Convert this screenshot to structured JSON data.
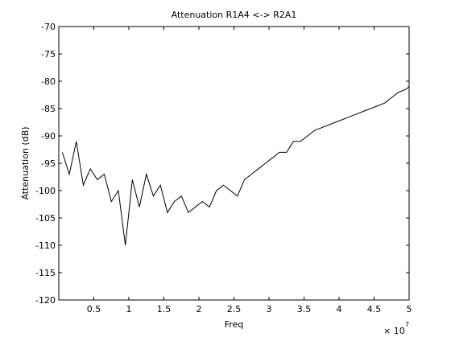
{
  "figure": {
    "title": "Attenuation R1A4 <-> R2A1",
    "xlabel": "Freq",
    "ylabel": "Attenuation (dB)",
    "x_exponent_base": "× 10",
    "x_exponent_power": "7"
  },
  "chart_data": {
    "type": "line",
    "title": "Attenuation R1A4 <-> R2A1",
    "xlabel": "Freq",
    "ylabel": "Attenuation (dB)",
    "x_scale_note": "x 10^7",
    "xlim": [
      0,
      5
    ],
    "ylim": [
      -120,
      -70
    ],
    "x_ticks": [
      0.5,
      1,
      1.5,
      2,
      2.5,
      3,
      3.5,
      4,
      4.5,
      5
    ],
    "x_tick_labels": [
      "0.5",
      "1",
      "1.5",
      "2",
      "2.5",
      "3",
      "3.5",
      "4",
      "4.5",
      "5"
    ],
    "y_ticks": [
      -120,
      -115,
      -110,
      -105,
      -100,
      -95,
      -90,
      -85,
      -80,
      -75,
      -70
    ],
    "y_tick_labels": [
      "-120",
      "-115",
      "-110",
      "-105",
      "-100",
      "-95",
      "-90",
      "-85",
      "-80",
      "-75",
      "-70"
    ],
    "grid": false,
    "series_color": "#000000",
    "series": [
      {
        "x": [
          0.05,
          0.15,
          0.25,
          0.35,
          0.45,
          0.55,
          0.65,
          0.75,
          0.85,
          0.95,
          1.05,
          1.15,
          1.25,
          1.35,
          1.45,
          1.55,
          1.65,
          1.75,
          1.85,
          1.95,
          2.05,
          2.15,
          2.25,
          2.35,
          2.45,
          2.55,
          2.65,
          2.75,
          2.85,
          2.95,
          3.05,
          3.15,
          3.25,
          3.35,
          3.45,
          3.55,
          3.65,
          3.75,
          3.85,
          3.95,
          4.05,
          4.15,
          4.25,
          4.35,
          4.45,
          4.55,
          4.65,
          4.75,
          4.85,
          4.95,
          5.0
        ],
        "y": [
          -93,
          -97,
          -91,
          -99,
          -96,
          -98,
          -97,
          -102,
          -100,
          -110,
          -98,
          -103,
          -97,
          -101,
          -99,
          -104,
          -102,
          -101,
          -104,
          -103,
          -102,
          -103,
          -100,
          -99,
          -100,
          -101,
          -98,
          -97,
          -96,
          -95,
          -94,
          -93,
          -93,
          -91,
          -91,
          -90,
          -89,
          -88.5,
          -88,
          -87.5,
          -87,
          -86.5,
          -86,
          -85.5,
          -85,
          -84.5,
          -84,
          -83,
          -82,
          -81.5,
          -81
        ]
      }
    ]
  }
}
